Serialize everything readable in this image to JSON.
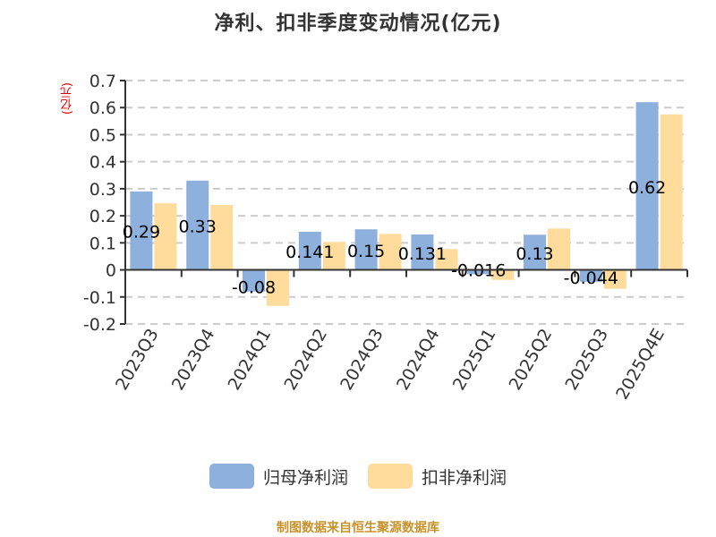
{
  "title": "净利、扣非季度变动情况(亿元)",
  "y_axis_label": "(亿元)",
  "legend": [
    {
      "label": "归母净利润",
      "color": "#8eb0dc"
    },
    {
      "label": "扣非净利润",
      "color": "#ffdb9c"
    }
  ],
  "footer": "制图数据来自恒生聚源数据库",
  "chart_data": {
    "type": "bar",
    "title": "净利、扣非季度变动情况(亿元)",
    "xlabel": "",
    "ylabel": "(亿元)",
    "ylim": [
      -0.2,
      0.7
    ],
    "yticks": [
      -0.2,
      -0.1,
      0,
      0.1,
      0.2,
      0.3,
      0.4,
      0.5,
      0.6,
      0.7
    ],
    "grid": "horizontal dashed",
    "legend_position": "bottom",
    "categories": [
      "2023Q3",
      "2023Q4",
      "2024Q1",
      "2024Q2",
      "2024Q3",
      "2024Q4",
      "2025Q1",
      "2025Q2",
      "2025Q3",
      "2025Q4E"
    ],
    "series": [
      {
        "name": "归母净利润",
        "color": "#8eb0dc",
        "values": [
          0.29,
          0.33,
          -0.08,
          0.141,
          0.15,
          0.131,
          -0.016,
          0.13,
          -0.044,
          0.62
        ]
      },
      {
        "name": "扣非净利润",
        "color": "#ffdb9c",
        "values": [
          0.246,
          0.24,
          -0.133,
          0.103,
          0.133,
          0.077,
          -0.037,
          0.153,
          -0.07,
          0.575
        ]
      }
    ],
    "data_labels": [
      "0.29",
      "0.33",
      "-0.08",
      "0.141",
      "0.15",
      "0.131",
      "-0.016",
      "0.13",
      "-0.044",
      "0.62"
    ]
  }
}
